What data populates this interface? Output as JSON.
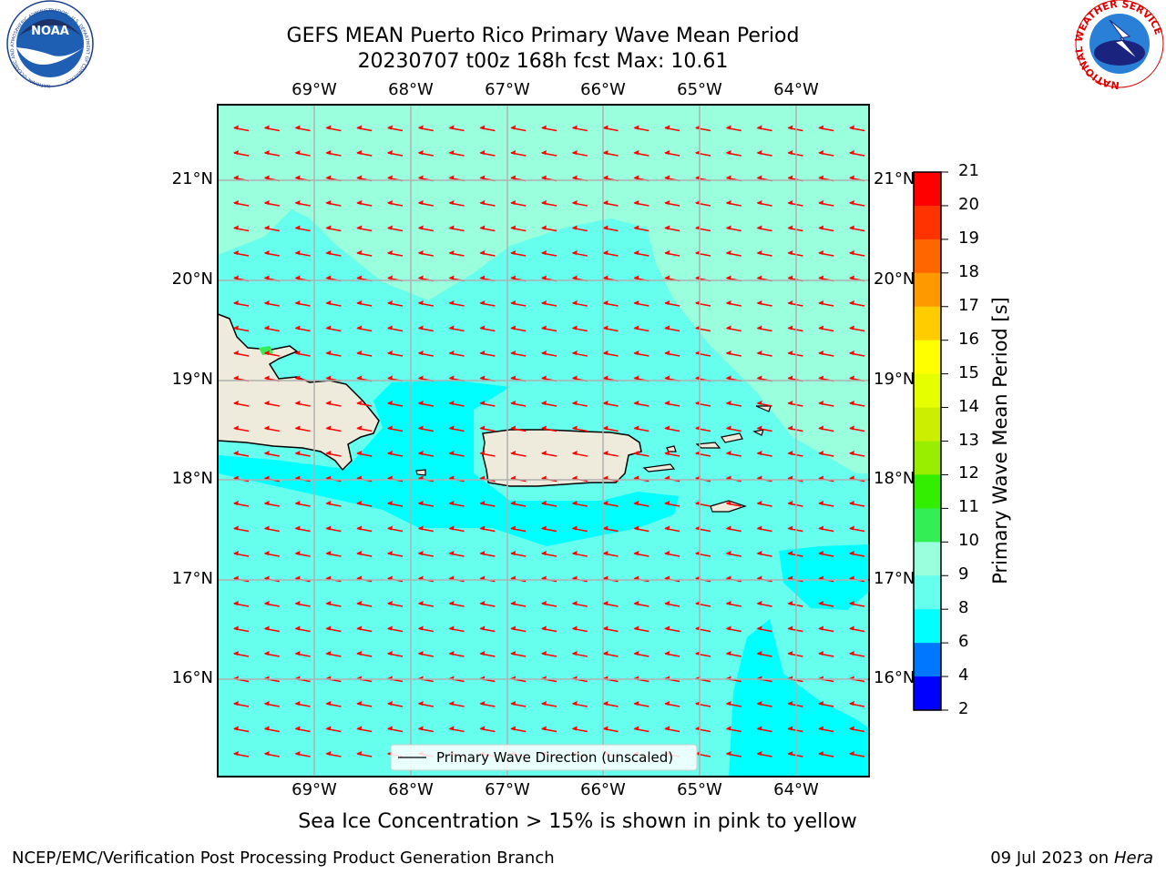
{
  "header": {
    "title_line1": "GEFS MEAN Puerto Rico Primary Wave Mean Period",
    "title_line2": "20230707 t00z 168h fcst   Max: 10.61"
  },
  "logos": {
    "noaa_text": "NOAA",
    "noaa_ring_text": "NATIONAL OCEANIC AND ATMOSPHERIC ADMINISTRATION · U.S. DEPARTMENT OF COMMERCE",
    "nws_ring_text": "NATIONAL WEATHER SERVICE"
  },
  "map": {
    "lon_labels": [
      "69°W",
      "68°W",
      "67°W",
      "66°W",
      "65°W",
      "64°W"
    ],
    "lat_labels": [
      "21°N",
      "20°N",
      "19°N",
      "18°N",
      "17°N",
      "16°N"
    ],
    "lon_range": [
      -70.0,
      -63.25
    ],
    "lat_range": [
      15.0,
      21.75
    ],
    "legend_label": "Primary Wave Direction (unscaled)",
    "arrow_color": "#ff0000",
    "land_color": "#efebdc",
    "grid": true
  },
  "colorbar": {
    "label": "Primary Wave Mean Period [s]",
    "ticks": [
      "21",
      "20",
      "19",
      "18",
      "17",
      "16",
      "15",
      "14",
      "13",
      "12",
      "11",
      "10",
      "9",
      "8",
      "6",
      "4",
      "2"
    ],
    "colors": [
      "#ff0000",
      "#ff3300",
      "#ff6600",
      "#ff9900",
      "#ffcc00",
      "#ffff00",
      "#e6ff00",
      "#ccee00",
      "#99ee00",
      "#33ee00",
      "#33ee55",
      "#99ffdd",
      "#66ffee",
      "#00ffff",
      "#0077ff",
      "#0000ff"
    ]
  },
  "footer": {
    "ice_note": "Sea Ice Concentration > 15% is shown in pink to yellow",
    "credit": "NCEP/EMC/Verification Post Processing Product Generation Branch",
    "date_prefix": "09 Jul 2023 on ",
    "machine": "Hera"
  }
}
